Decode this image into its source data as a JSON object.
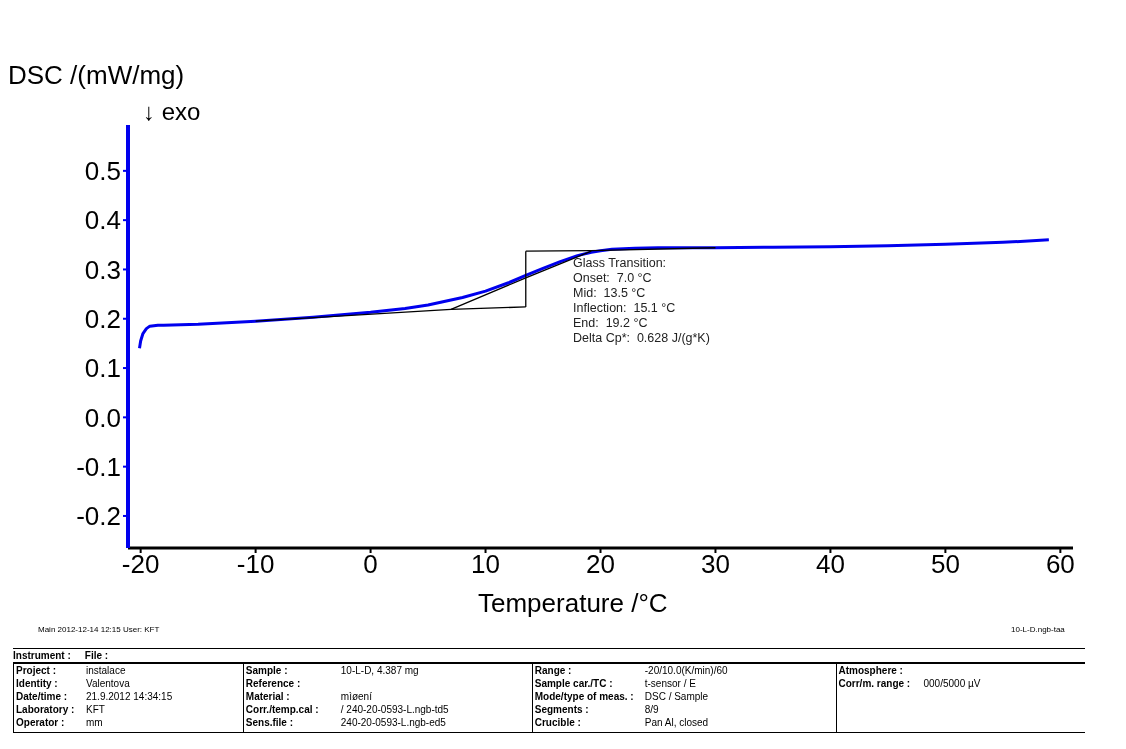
{
  "chart_data": {
    "type": "line",
    "xlabel": "Temperature /°C",
    "ylabel": "DSC /(mW/mg)",
    "xlim": [
      -21.1,
      61.1
    ],
    "xticks": [
      -20,
      -10,
      0,
      10,
      20,
      30,
      40,
      50,
      60
    ],
    "ylim": [
      -0.265,
      0.593
    ],
    "yticks": [
      -0.2,
      -0.1,
      {
        "value": 0,
        "label": "0.0"
      },
      0.1,
      0.2,
      0.3,
      0.4,
      0.5
    ],
    "grid": false,
    "marker": "none",
    "line_style": "solid",
    "series": [
      {
        "color": "#0000ee",
        "x": [
          -20.1,
          -20,
          -19.8,
          -19.5,
          -19.2,
          -18.5,
          -18,
          -15,
          -10,
          -5,
          0,
          3,
          5,
          8,
          10,
          12,
          13.5,
          15,
          16.5,
          18,
          19.2,
          20,
          21,
          22,
          23,
          25,
          30,
          35,
          40,
          45,
          50,
          55,
          59
        ],
        "values": [
          0.14,
          0.155,
          0.17,
          0.18,
          0.185,
          0.187,
          0.187,
          0.189,
          0.195,
          0.203,
          0.213,
          0.221,
          0.228,
          0.243,
          0.256,
          0.273,
          0.288,
          0.302,
          0.316,
          0.328,
          0.335,
          0.338,
          0.341,
          0.342,
          0.343,
          0.344,
          0.344,
          0.345,
          0.346,
          0.348,
          0.351,
          0.355,
          0.36
        ]
      },
      {
        "color": "#000000",
        "x": [
          -10,
          7.0,
          13.5
        ],
        "values": [
          0.195,
          0.219,
          0.224
        ]
      },
      {
        "color": "#000000",
        "x": [
          7.0,
          13.5,
          19.2
        ],
        "values": [
          0.219,
          0.283,
          0.337
        ]
      },
      {
        "color": "#000000",
        "x": [
          13.5,
          19.2,
          30
        ],
        "values": [
          0.337,
          0.338,
          0.344
        ]
      },
      {
        "color": "#000000",
        "x": [
          13.5,
          13.5
        ],
        "values": [
          0.224,
          0.337
        ]
      }
    ],
    "annotations": [
      "↓ exo",
      "Glass Transition:",
      "Onset:  7.0 °C",
      "Mid:  13.5 °C",
      "Inflection:  15.1 °C",
      "End:  19.2 °C",
      "Delta Cp*:  0.628 J/(g*K)",
      "Main   2012-12-14 12:15   User: KFT",
      "10-L-D.ngb-taa",
      "Instrument :",
      "File :",
      "Project :  instalace",
      "Identity :  Valentova",
      "Date/time :  21.9.2012 14:34:15",
      "Laboratory :  KFT",
      "Operator :  mm",
      "Sample :  10-L-D, 4.387 mg",
      "Reference :",
      "Material :  mìøení",
      "Corr./temp.cal :  / 240-20-0593-L.ngb-td5",
      "Sens.file :  240-20-0593-L.ngb-ed5",
      "Range :  -20/10.0(K/min)/60",
      "Sample car./TC :  t-sensor / E",
      "Mode/type of meas. :  DSC / Sample",
      "Segments :  8/9",
      "Crucible :  Pan Al, closed",
      "Atmosphere :",
      "Corr/m. range :  000/5000 µV"
    ]
  }
}
